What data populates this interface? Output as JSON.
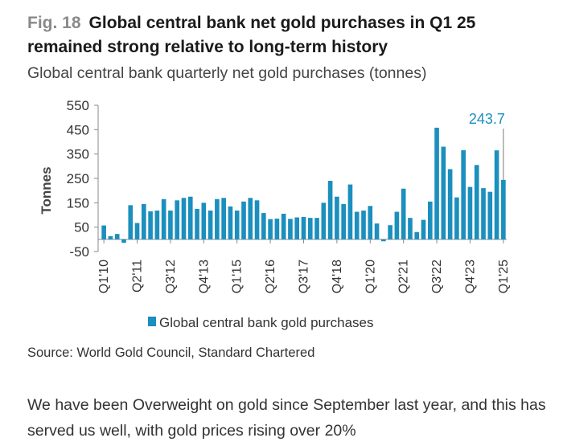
{
  "figure": {
    "number": "Fig. 18",
    "title": "Global central bank net gold purchases in Q1 25 remained strong relative to long-term history",
    "subtitle": "Global central bank quarterly net gold purchases (tonnes)"
  },
  "source": "Source: World Gold Council, Standard Chartered",
  "body_text": "We have been Overweight on gold since September last year, and this has served us well, with gold prices rising over 20%",
  "colors": {
    "bar": "#1b8fbd",
    "axis": "#888888",
    "annotation": "#1b8fbd"
  },
  "chart_data": {
    "type": "bar",
    "ylabel": "Tonnes",
    "ylim": [
      -50,
      550
    ],
    "yticks": [
      "550",
      "450",
      "350",
      "250",
      "150",
      "50",
      "-50"
    ],
    "ytick_values": [
      550,
      450,
      350,
      250,
      150,
      50,
      -50
    ],
    "xtick_labels": [
      "Q1'10",
      "Q2'11",
      "Q3'12",
      "Q4'13",
      "Q1'15",
      "Q2'16",
      "Q3'17",
      "Q4'18",
      "Q1'20",
      "Q2'21",
      "Q3'22",
      "Q4'23",
      "Q1'25"
    ],
    "categories": [
      "Q1'10",
      "Q2'10",
      "Q3'10",
      "Q4'10",
      "Q1'11",
      "Q2'11",
      "Q3'11",
      "Q4'11",
      "Q1'12",
      "Q2'12",
      "Q3'12",
      "Q4'12",
      "Q1'13",
      "Q2'13",
      "Q3'13",
      "Q4'13",
      "Q1'14",
      "Q2'14",
      "Q3'14",
      "Q4'14",
      "Q1'15",
      "Q2'15",
      "Q3'15",
      "Q4'15",
      "Q1'16",
      "Q2'16",
      "Q3'16",
      "Q4'16",
      "Q1'17",
      "Q2'17",
      "Q3'17",
      "Q4'17",
      "Q1'18",
      "Q2'18",
      "Q3'18",
      "Q4'18",
      "Q1'19",
      "Q2'19",
      "Q3'19",
      "Q4'19",
      "Q1'20",
      "Q2'20",
      "Q3'20",
      "Q4'20",
      "Q1'21",
      "Q2'21",
      "Q3'21",
      "Q4'21",
      "Q1'22",
      "Q2'22",
      "Q3'22",
      "Q4'22",
      "Q1'23",
      "Q2'23",
      "Q3'23",
      "Q4'23",
      "Q1'24",
      "Q2'24",
      "Q3'24",
      "Q4'24",
      "Q1'25"
    ],
    "series": [
      {
        "name": "Global central bank gold purchases",
        "values": [
          57,
          13,
          22,
          -14,
          140,
          67,
          145,
          115,
          118,
          165,
          118,
          160,
          170,
          175,
          125,
          150,
          118,
          165,
          170,
          135,
          118,
          155,
          170,
          160,
          108,
          83,
          85,
          105,
          84,
          90,
          92,
          88,
          88,
          150,
          240,
          175,
          145,
          225,
          113,
          118,
          137,
          65,
          -8,
          58,
          113,
          208,
          88,
          30,
          80,
          155,
          458,
          380,
          288,
          172,
          366,
          215,
          305,
          210,
          195,
          365,
          244
        ]
      }
    ],
    "annotations": [
      {
        "category": "Q1'25",
        "label": "243.7"
      }
    ],
    "legend": {
      "label": "Global central bank gold purchases",
      "position": "bottom"
    },
    "grid": false
  }
}
